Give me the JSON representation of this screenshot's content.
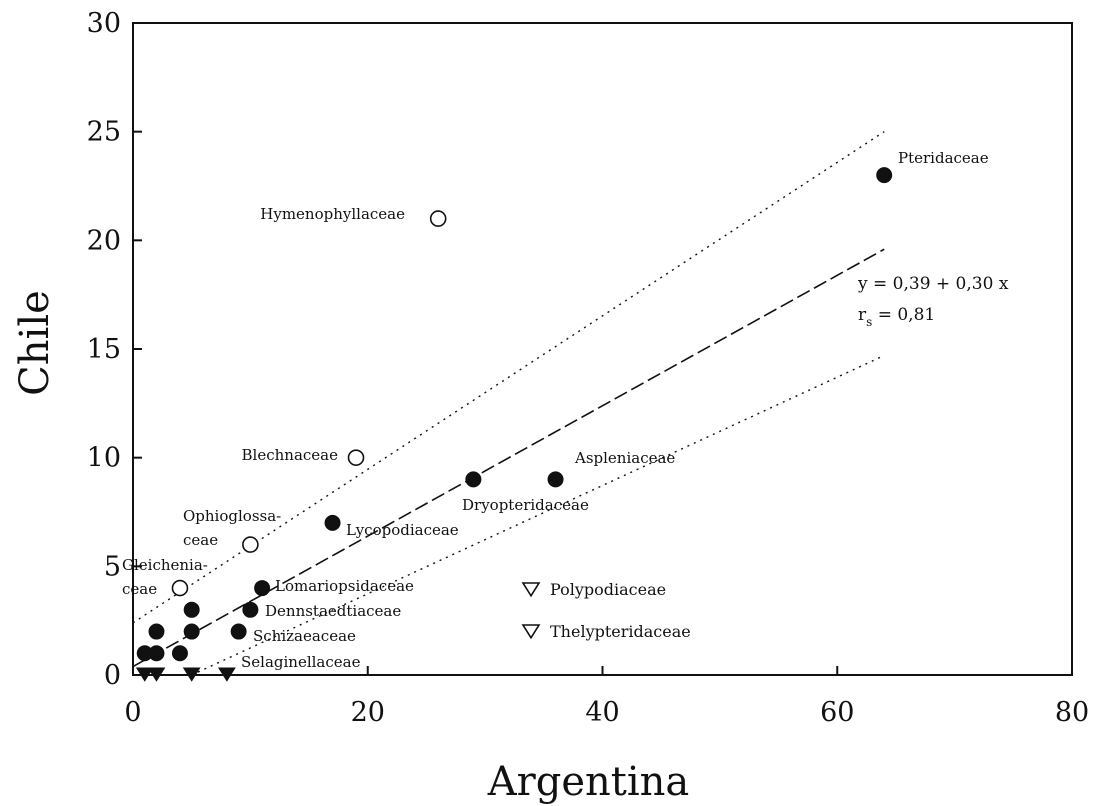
{
  "chart_data": {
    "type": "scatter",
    "xlabel": "Argentina",
    "ylabel": "Chile",
    "xlim": [
      0,
      80
    ],
    "ylim": [
      0,
      30
    ],
    "xticks": [
      0,
      20,
      40,
      60,
      80
    ],
    "yticks": [
      0,
      5,
      10,
      15,
      20,
      25,
      30
    ],
    "grid": false,
    "regression": {
      "intercept": 0.39,
      "slope": 0.3,
      "equation_label": "y = 0,39 + 0,30 x",
      "rs_symbol": "r",
      "rs_subscript": "s",
      "rs_value": " = 0,81",
      "x_range": [
        0,
        64
      ],
      "upper_band": [
        [
          0,
          2.4
        ],
        [
          64,
          25
        ]
      ],
      "lower_band": [
        [
          5,
          0
        ],
        [
          64,
          14.7
        ]
      ]
    },
    "series": [
      {
        "marker": "filled-circle",
        "points": [
          {
            "x": 64,
            "y": 23,
            "label": "Pteridaceae"
          },
          {
            "x": 36,
            "y": 9,
            "label": "Aspleniaceae"
          },
          {
            "x": 29,
            "y": 9,
            "label": "Dryopteridaceae"
          },
          {
            "x": 17,
            "y": 7,
            "label": "Lycopodiaceae"
          },
          {
            "x": 11,
            "y": 4,
            "label": "Lomariopsidaceae"
          },
          {
            "x": 10,
            "y": 3,
            "label": "Dennstaedtiaceae"
          },
          {
            "x": 9,
            "y": 2,
            "label": "Schizaeaceae"
          },
          {
            "x": 5,
            "y": 3,
            "label": ""
          },
          {
            "x": 5,
            "y": 2,
            "label": ""
          },
          {
            "x": 2,
            "y": 2,
            "label": ""
          },
          {
            "x": 4,
            "y": 1,
            "label": ""
          },
          {
            "x": 2,
            "y": 1,
            "label": ""
          },
          {
            "x": 1,
            "y": 1,
            "label": ""
          }
        ]
      },
      {
        "marker": "open-circle",
        "points": [
          {
            "x": 26,
            "y": 21,
            "label": "Hymenophyllaceae"
          },
          {
            "x": 19,
            "y": 10,
            "label": "Blechnaceae"
          },
          {
            "x": 10,
            "y": 6,
            "label": "Ophioglossa-|ceae"
          },
          {
            "x": 4,
            "y": 4,
            "label": "Gleichenia-|ceae"
          }
        ]
      },
      {
        "marker": "filled-triangle",
        "points": [
          {
            "x": 8,
            "y": 0,
            "label": "Selaginellaceae"
          },
          {
            "x": 5,
            "y": 0,
            "label": ""
          },
          {
            "x": 2,
            "y": 0,
            "label": ""
          },
          {
            "x": 1,
            "y": 0,
            "label": ""
          }
        ]
      }
    ],
    "legend_items": [
      {
        "marker": "open-triangle",
        "label": "Polypodiaceae"
      },
      {
        "marker": "open-triangle",
        "label": "Thelypteridaceae"
      }
    ]
  }
}
